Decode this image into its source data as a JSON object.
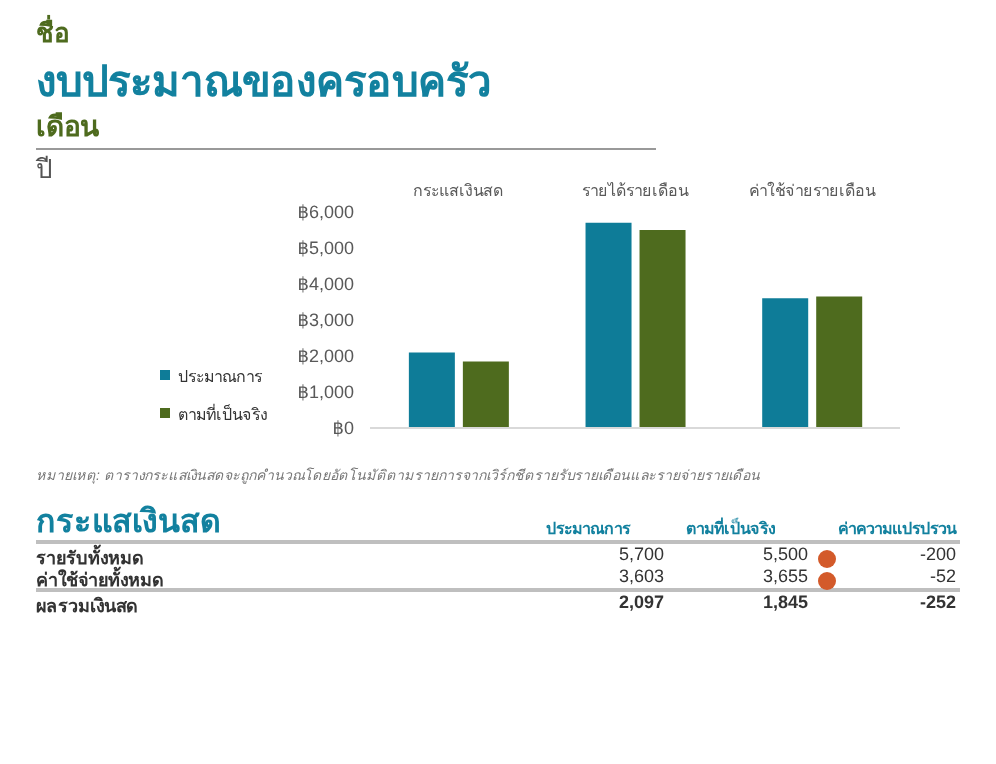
{
  "chart_data": {
    "type": "bar",
    "title": "งบประมาณของครอบครัว",
    "categories": [
      "กระแสเงินสด",
      "รายได้รายเดือน",
      "ค่าใช้จ่ายรายเดือน"
    ],
    "series": [
      {
        "name": "ประมาณการ",
        "color": "#0e7c98",
        "values": [
          2097,
          5700,
          3603
        ]
      },
      {
        "name": "ตามที่เป็นจริง",
        "color": "#4e6b1e",
        "values": [
          1845,
          5500,
          3655
        ]
      }
    ],
    "ylim": [
      0,
      6000
    ],
    "yticks": [
      {
        "value": 0,
        "label": "฿0"
      },
      {
        "value": 1000,
        "label": "฿1,000"
      },
      {
        "value": 2000,
        "label": "฿2,000"
      },
      {
        "value": 3000,
        "label": "฿3,000"
      },
      {
        "value": 4000,
        "label": "฿4,000"
      },
      {
        "value": 5000,
        "label": "฿5,000"
      },
      {
        "value": 6000,
        "label": "฿6,000"
      }
    ],
    "legend": "left",
    "grid": false,
    "annotations": [
      "ชื่อ",
      "เดือน",
      "ปี",
      "หมายเหตุ: ตารางกระแสเงินสดจะถูกคำนวณโดยอัตโนมัติตามรายการจากเวิร์กชีตรายรับรายเดือนและรายจ่ายรายเดือน",
      "กระแสเงินสด",
      "ค่าความแปรปรวน",
      "รายรับทั้งหมด",
      "ค่าใช้จ่ายทั้งหมด",
      "ผลรวมเงินสด",
      "-200",
      "-52",
      "-252",
      "5,700",
      "5,500",
      "3,603",
      "3,655",
      "2,097",
      "1,845"
    ]
  }
}
